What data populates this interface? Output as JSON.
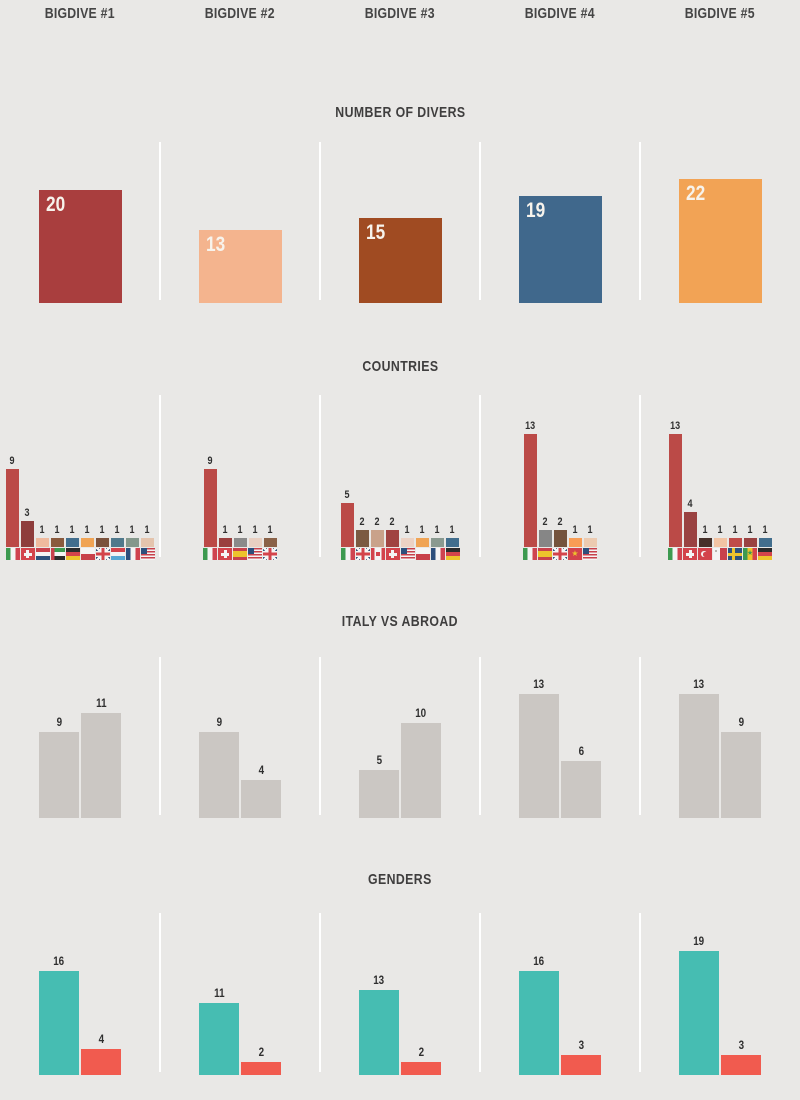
{
  "page": {
    "background_color": "#e9e8e6",
    "divider_color": "#ffffff",
    "title_color": "#3f3e3e"
  },
  "header": {
    "labels": [
      "BIGDIVE #1",
      "BIGDIVE #2",
      "BIGDIVE #3",
      "BIGDIVE #4",
      "BIGDIVE #5"
    ]
  },
  "chart_data": [
    {
      "type": "bar",
      "title": "NUMBER OF DIVERS",
      "categories": [
        "BIGDIVE #1",
        "BIGDIVE #2",
        "BIGDIVE #3",
        "BIGDIVE #4",
        "BIGDIVE #5"
      ],
      "values": [
        20,
        13,
        15,
        19,
        22
      ],
      "colors": [
        "#a93e3e",
        "#f4b48e",
        "#a04b22",
        "#40688c",
        "#f2a355"
      ],
      "value_labels_inside_bars": true
    },
    {
      "type": "bar",
      "title": "COUNTRIES",
      "categories": [
        "BIGDIVE #1",
        "BIGDIVE #2",
        "BIGDIVE #3",
        "BIGDIVE #4",
        "BIGDIVE #5"
      ],
      "groups": [
        {
          "bars": [
            {
              "country": "Italy",
              "flag": "it",
              "value": 9,
              "color": "#bb4a47"
            },
            {
              "country": "Switzerland",
              "flag": "ch",
              "value": 3,
              "color": "#8e3d3c"
            },
            {
              "country": "Netherlands",
              "flag": "nl",
              "value": 1,
              "color": "#efba9e"
            },
            {
              "country": "United Arab Emirates",
              "flag": "ae",
              "value": 1,
              "color": "#8a5a3d"
            },
            {
              "country": "Germany",
              "flag": "de",
              "value": 1,
              "color": "#426e8d"
            },
            {
              "country": "Poland",
              "flag": "pl",
              "value": 1,
              "color": "#f0a455"
            },
            {
              "country": "United Kingdom",
              "flag": "gb",
              "value": 1,
              "color": "#7b523c"
            },
            {
              "country": "Luxembourg",
              "flag": "lu",
              "value": 1,
              "color": "#50798c"
            },
            {
              "country": "France",
              "flag": "fr",
              "value": 1,
              "color": "#84988c"
            },
            {
              "country": "USA",
              "flag": "us",
              "value": 1,
              "color": "#e4c4ad"
            }
          ]
        },
        {
          "bars": [
            {
              "country": "Italy",
              "flag": "it",
              "value": 9,
              "color": "#bb4a47"
            },
            {
              "country": "Switzerland",
              "flag": "ch",
              "value": 1,
              "color": "#9a3f3e"
            },
            {
              "country": "Spain",
              "flag": "es",
              "value": 1,
              "color": "#8a8a8a"
            },
            {
              "country": "USA",
              "flag": "us",
              "value": 1,
              "color": "#e9d0c2"
            },
            {
              "country": "United Kingdom",
              "flag": "gb",
              "value": 1,
              "color": "#8a6248"
            }
          ]
        },
        {
          "bars": [
            {
              "country": "Italy",
              "flag": "it",
              "value": 5,
              "color": "#bb4a47"
            },
            {
              "country": "United Kingdom",
              "flag": "gb",
              "value": 2,
              "color": "#7b5a42"
            },
            {
              "country": "Canada",
              "flag": "ca",
              "value": 2,
              "color": "#c9a28a"
            },
            {
              "country": "Switzerland",
              "flag": "ch",
              "value": 2,
              "color": "#a04341"
            },
            {
              "country": "USA",
              "flag": "us",
              "value": 1,
              "color": "#ecd2c4"
            },
            {
              "country": "Poland",
              "flag": "pl",
              "value": 1,
              "color": "#f0a455"
            },
            {
              "country": "France",
              "flag": "fr",
              "value": 1,
              "color": "#8a9a90"
            },
            {
              "country": "Germany",
              "flag": "de",
              "value": 1,
              "color": "#426e8d"
            }
          ]
        },
        {
          "bars": [
            {
              "country": "Italy",
              "flag": "it",
              "value": 13,
              "color": "#bb4a47"
            },
            {
              "country": "Spain",
              "flag": "es",
              "value": 2,
              "color": "#868686"
            },
            {
              "country": "United Kingdom",
              "flag": "gb",
              "value": 2,
              "color": "#74533d"
            },
            {
              "country": "Vietnam",
              "flag": "vn",
              "value": 1,
              "color": "#f89d55"
            },
            {
              "country": "USA",
              "flag": "us",
              "value": 1,
              "color": "#eccab0"
            }
          ]
        },
        {
          "bars": [
            {
              "country": "Italy",
              "flag": "it",
              "value": 13,
              "color": "#bb4a47"
            },
            {
              "country": "Switzerland",
              "flag": "ch",
              "value": 4,
              "color": "#9a4241"
            },
            {
              "country": "Turkey",
              "flag": "tr",
              "value": 1,
              "color": "#463029"
            },
            {
              "country": "Malta",
              "flag": "mt",
              "value": 1,
              "color": "#f2c3a3"
            },
            {
              "country": "Sweden",
              "flag": "se",
              "value": 1,
              "color": "#bf4b48"
            },
            {
              "country": "Senegal",
              "flag": "sn",
              "value": 1,
              "color": "#9a4241"
            },
            {
              "country": "Germany",
              "flag": "de",
              "value": 1,
              "color": "#426e8d"
            }
          ]
        }
      ]
    },
    {
      "type": "bar",
      "title": "ITALY VS ABROAD",
      "categories": [
        "BIGDIVE #1",
        "BIGDIVE #2",
        "BIGDIVE #3",
        "BIGDIVE #4",
        "BIGDIVE #5"
      ],
      "series": [
        {
          "name": "Italy",
          "values": [
            9,
            9,
            5,
            13,
            13
          ]
        },
        {
          "name": "Abroad",
          "values": [
            11,
            4,
            10,
            6,
            9
          ]
        }
      ],
      "bar_color": "#cbc7c3"
    },
    {
      "type": "bar",
      "title": "GENDERS",
      "categories": [
        "BIGDIVE #1",
        "BIGDIVE #2",
        "BIGDIVE #3",
        "BIGDIVE #4",
        "BIGDIVE #5"
      ],
      "series": [
        {
          "name": "gender-series-teal",
          "values": [
            16,
            11,
            13,
            16,
            19
          ],
          "color": "#46bdb2"
        },
        {
          "name": "gender-series-red",
          "values": [
            4,
            2,
            2,
            3,
            3
          ],
          "color": "#f15b4f"
        }
      ]
    }
  ]
}
